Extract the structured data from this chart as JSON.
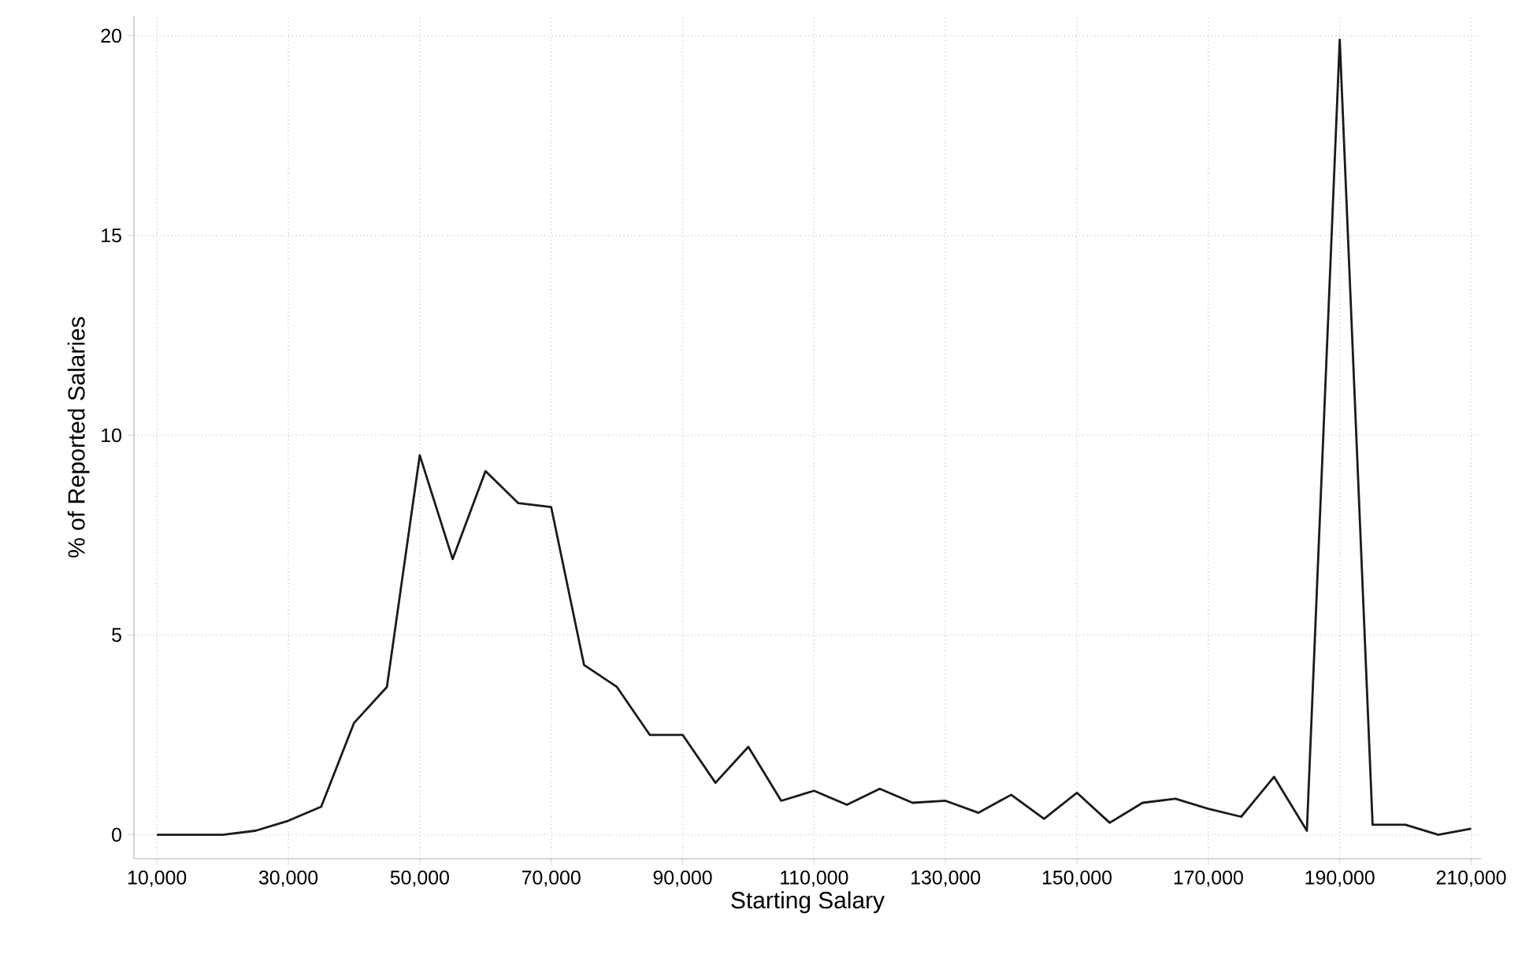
{
  "chart_data": {
    "type": "line",
    "xlabel": "Starting Salary",
    "ylabel": "% of Reported Salaries",
    "x": [
      10000,
      15000,
      20000,
      25000,
      30000,
      35000,
      40000,
      45000,
      50000,
      55000,
      60000,
      65000,
      70000,
      75000,
      80000,
      85000,
      90000,
      95000,
      100000,
      105000,
      110000,
      115000,
      120000,
      125000,
      130000,
      135000,
      140000,
      145000,
      150000,
      155000,
      160000,
      165000,
      170000,
      175000,
      180000,
      185000,
      190000,
      195000,
      200000,
      205000,
      210000
    ],
    "series": [
      {
        "color": "#1a1a1a",
        "values": [
          0,
          0,
          0,
          0.1,
          0.35,
          0.7,
          2.8,
          3.7,
          9.5,
          6.9,
          9.1,
          8.3,
          8.2,
          4.25,
          3.7,
          2.5,
          2.5,
          1.3,
          2.2,
          0.85,
          1.1,
          0.75,
          1.15,
          0.8,
          0.85,
          0.55,
          1.0,
          0.4,
          1.05,
          0.3,
          0.8,
          0.9,
          0.65,
          0.45,
          1.45,
          0.1,
          19.9,
          0.25,
          0.25,
          0.0,
          0.15
        ]
      }
    ],
    "xlim": [
      6500,
      211500
    ],
    "ylim": [
      -0.6,
      20.5
    ],
    "xticks": [
      {
        "value": 10000,
        "label": "10,000"
      },
      {
        "value": 30000,
        "label": "30,000"
      },
      {
        "value": 50000,
        "label": "50,000"
      },
      {
        "value": 70000,
        "label": "70,000"
      },
      {
        "value": 90000,
        "label": "90,000"
      },
      {
        "value": 110000,
        "label": "110,000"
      },
      {
        "value": 130000,
        "label": "130,000"
      },
      {
        "value": 150000,
        "label": "150,000"
      },
      {
        "value": 170000,
        "label": "170,000"
      },
      {
        "value": 190000,
        "label": "190,000"
      },
      {
        "value": 210000,
        "label": "210,000"
      }
    ],
    "yticks": [
      0,
      5,
      10,
      15,
      20
    ],
    "grid": true,
    "line_style": "solid",
    "marker": "none"
  }
}
